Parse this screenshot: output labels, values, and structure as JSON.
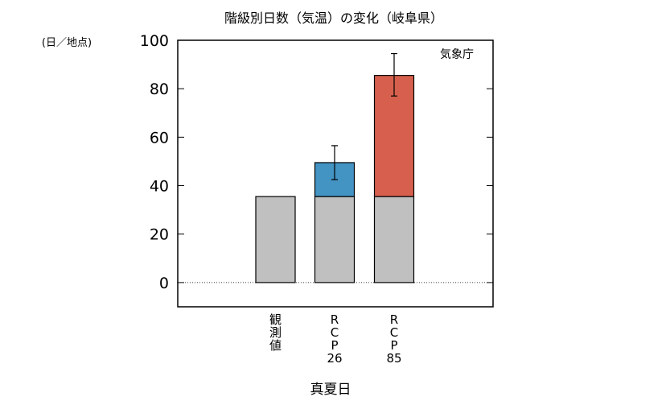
{
  "chart_data": {
    "type": "bar",
    "title": "階級別日数（気温）の変化（岐阜県）",
    "unit_label": "(日／地点)",
    "source": "気象庁",
    "xlabel": "真夏日",
    "categories": [
      [
        "観",
        "測",
        "値"
      ],
      [
        "R",
        "C",
        "P",
        "26"
      ],
      [
        "R",
        "C",
        "P",
        "85"
      ]
    ],
    "ylim": [
      -10,
      100
    ],
    "yticks": [
      0,
      20,
      40,
      60,
      80,
      100
    ],
    "grid": false,
    "zero_line": true,
    "series": [
      {
        "role": "base",
        "color": "#c0c0c0",
        "values": [
          35.5,
          35.5,
          35.5
        ]
      },
      {
        "role": "increase",
        "colors": [
          null,
          "#4393c3",
          "#d6604d"
        ],
        "values": [
          0,
          14,
          50
        ]
      }
    ],
    "error_bars": [
      null,
      {
        "center": 49.5,
        "low": 42.5,
        "high": 56.5
      },
      {
        "center": 85.5,
        "low": 77,
        "high": 94.5
      }
    ]
  }
}
